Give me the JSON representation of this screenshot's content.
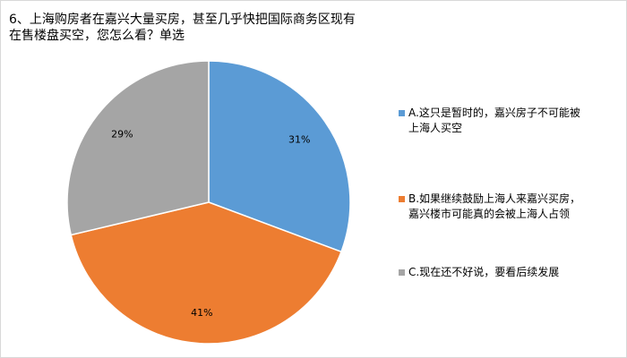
{
  "chart_data": {
    "type": "pie",
    "title_lines": [
      "6、上海购房者在嘉兴大量买房，甚至几乎快把国际商务区现有",
      "在售楼盘买空，您怎么看？单选"
    ],
    "slices": [
      {
        "label": "A.这只是暂时的，嘉兴房子不可能被\n上海人买空",
        "value": 31,
        "data_label": "31%",
        "color": "#5b9bd5"
      },
      {
        "label": "B.如果继续鼓励上海人来嘉兴买房，\n嘉兴楼市可能真的会被上海人占领",
        "value": 41,
        "data_label": "41%",
        "color": "#ed7d31"
      },
      {
        "label": "C.现在还不好说，要看后续发展",
        "value": 29,
        "data_label": "29%",
        "color": "#a5a5a5"
      }
    ],
    "legend_position": "right"
  }
}
